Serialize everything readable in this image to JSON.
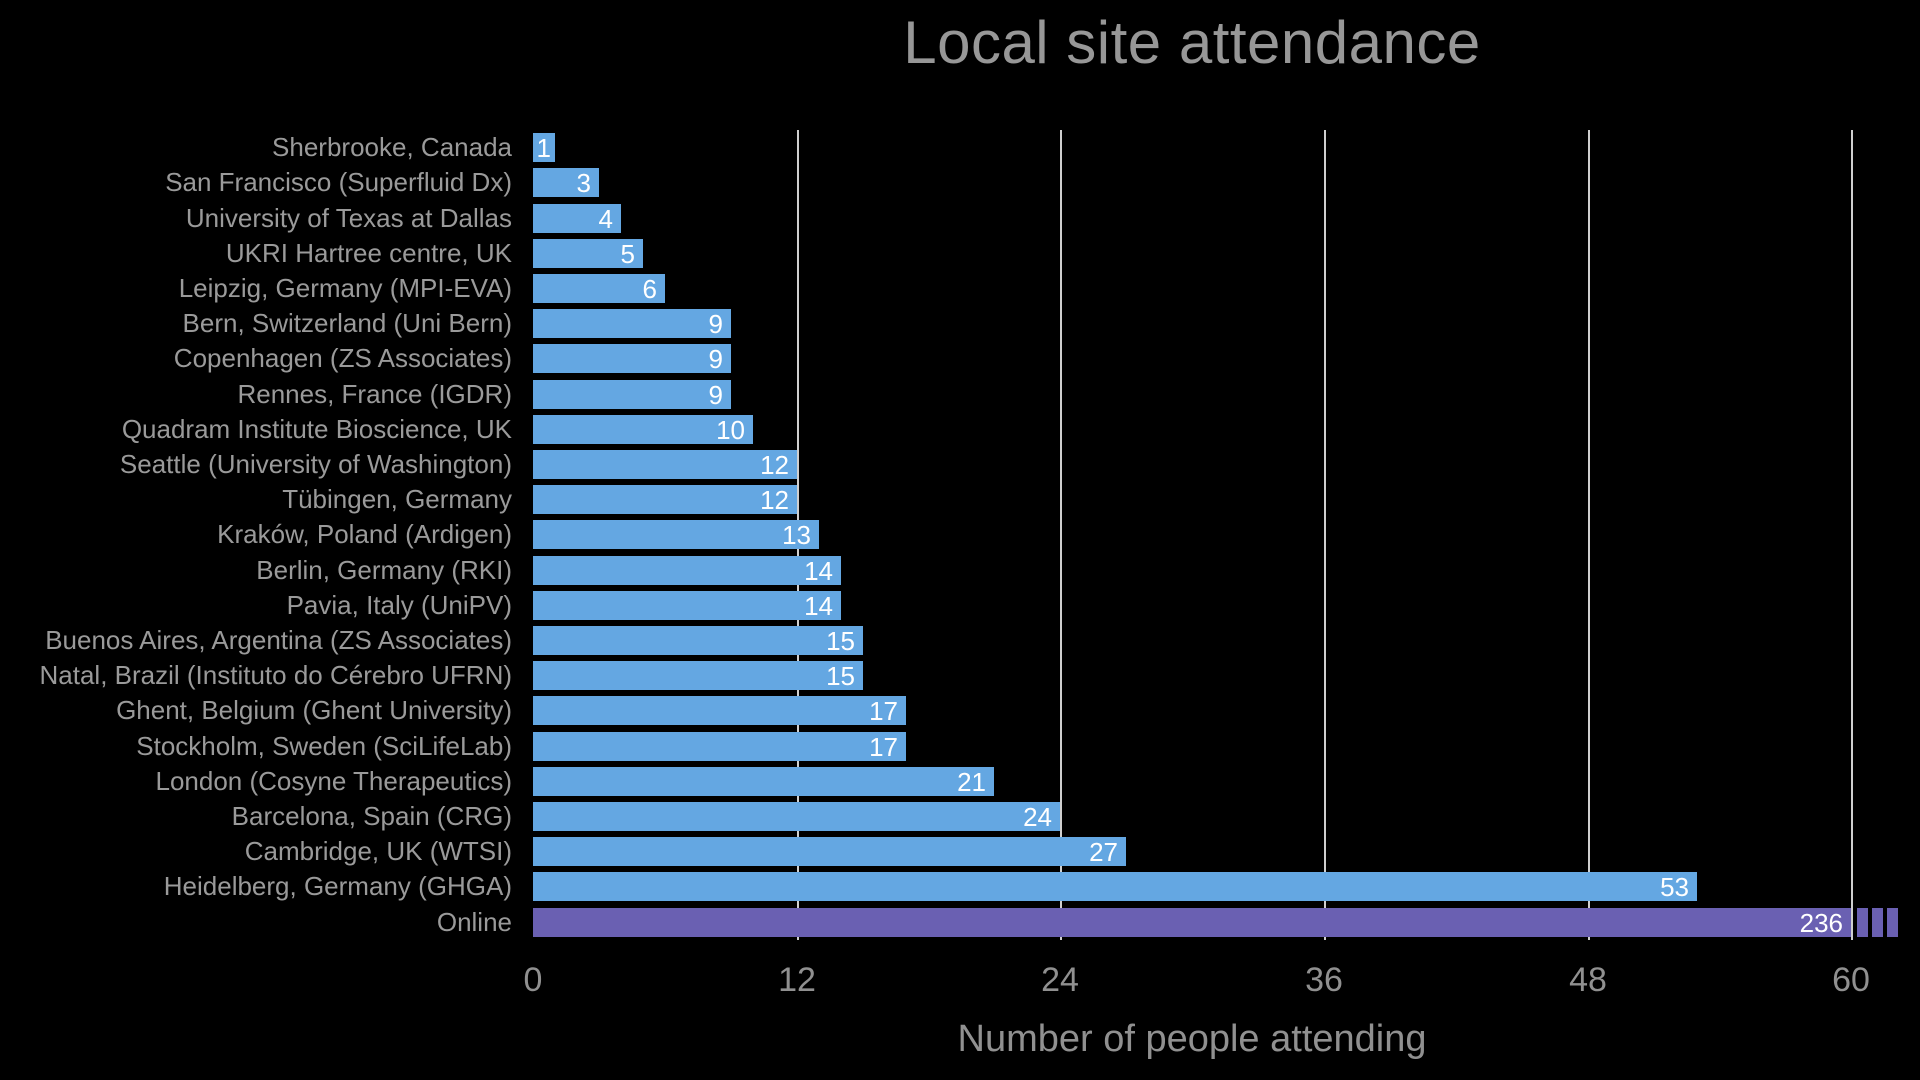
{
  "colors": {
    "background": "#000000",
    "bar_blue": "#64a7e2",
    "bar_purple": "#6a60b2",
    "value_label": "#ffffff",
    "axis_text": "#909090",
    "category_text": "#9a9a9a",
    "title_text": "#979797",
    "gridline": "#cfcfcf"
  },
  "chart_data": {
    "type": "bar",
    "orientation": "horizontal",
    "title": "Local site attendance",
    "xlabel": "Number of people attending",
    "ylabel": "",
    "xlim": [
      0,
      60
    ],
    "x_ticks": [
      0,
      12,
      24,
      36,
      48,
      60
    ],
    "grid": "vertical gridlines at ticks, drawn behind bars",
    "legend": "none",
    "categories": [
      "Sherbrooke, Canada",
      "San Francisco (Superfluid Dx)",
      "University of Texas at Dallas",
      "UKRI Hartree centre, UK",
      "Leipzig, Germany (MPI-EVA)",
      "Bern, Switzerland (Uni Bern)",
      "Copenhagen (ZS Associates)",
      "Rennes, France (IGDR)",
      "Quadram Institute Bioscience, UK",
      "Seattle (University of Washington)",
      "Tübingen, Germany",
      "Kraków, Poland (Ardigen)",
      "Berlin, Germany (RKI)",
      "Pavia, Italy (UniPV)",
      "Buenos Aires, Argentina (ZS Associates)",
      "Natal, Brazil (Instituto do Cérebro UFRN)",
      "Ghent, Belgium (Ghent University)",
      "Stockholm, Sweden (SciLifeLab)",
      "London (Cosyne Therapeutics)",
      "Barcelona, Spain (CRG)",
      "Cambridge, UK (WTSI)",
      "Heidelberg, Germany (GHGA)",
      "Online"
    ],
    "values": [
      1,
      3,
      4,
      5,
      6,
      9,
      9,
      9,
      10,
      12,
      12,
      13,
      14,
      14,
      15,
      15,
      17,
      17,
      21,
      24,
      27,
      53,
      236
    ],
    "bar_colors_note": "all bars blue except Online which is purple",
    "truncated_bars": [
      {
        "category": "Online",
        "value": 236,
        "shown_up_to": 60,
        "truncation_indicator": "three short dashes after the 60 gridline"
      }
    ]
  }
}
